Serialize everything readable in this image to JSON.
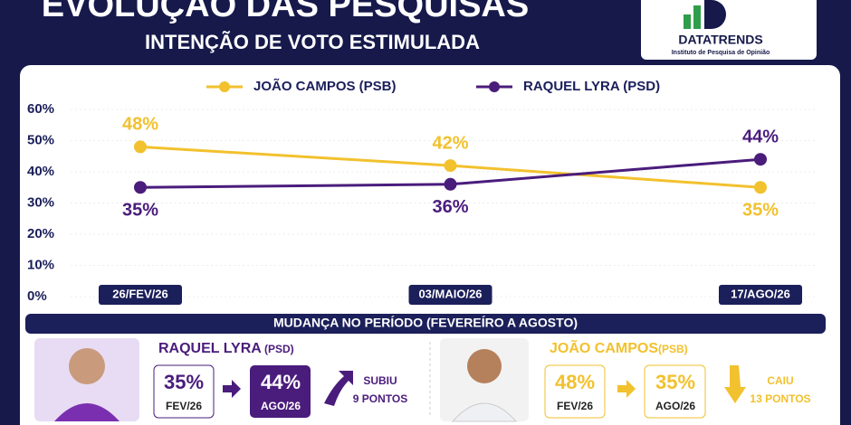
{
  "header": {
    "title": "EVOLUÇÃO DAS PESQUISAS",
    "subtitle": "INTENÇÃO DE VOTO ESTIMULADA"
  },
  "logo": {
    "name": "DATATRENDS",
    "tagline": "Instituto de Pesquisa de Opinião"
  },
  "chart_data": {
    "type": "line",
    "categories": [
      "26/FEV/26",
      "03/MAIO/26",
      "17/AGO/26"
    ],
    "series": [
      {
        "name": "JOÃO CAMPOS (PSB)",
        "color": "#f2c12e",
        "values": [
          48,
          42,
          35
        ],
        "value_labels": [
          "48%",
          "42%",
          "35%"
        ]
      },
      {
        "name": "RAQUEL LYRA (PSD)",
        "color": "#4a1c7c",
        "values": [
          35,
          36,
          44
        ],
        "value_labels": [
          "35%",
          "36%",
          "44%"
        ]
      }
    ],
    "ylim": [
      0,
      60
    ],
    "yticks": [
      {
        "value": 0,
        "label": "0%"
      },
      {
        "value": 10,
        "label": "10%"
      },
      {
        "value": 20,
        "label": "20%"
      },
      {
        "value": 30,
        "label": "30%"
      },
      {
        "value": 40,
        "label": "40%"
      },
      {
        "value": 50,
        "label": "50%"
      },
      {
        "value": 60,
        "label": "60%"
      }
    ],
    "grid": true,
    "legend": "top"
  },
  "summary": {
    "title": "MUDANÇA NO PERÍODO (FEVEREÍRO A AGOSTO)",
    "cards": [
      {
        "name": "RAQUEL LYRA",
        "party": "(PSD)",
        "from": "35%",
        "from_label": "FEV/26",
        "to": "44%",
        "to_label": "AGO/26",
        "change": "SUBIU",
        "points": "9 PONTOS"
      },
      {
        "name": "JOÃO CAMPOS",
        "party": "(PSB)",
        "from": "48%",
        "from_label": "FEV/26",
        "to": "35%",
        "to_label": "AGO/26",
        "change": "CAIU",
        "points": "13 PONTOS"
      }
    ]
  }
}
